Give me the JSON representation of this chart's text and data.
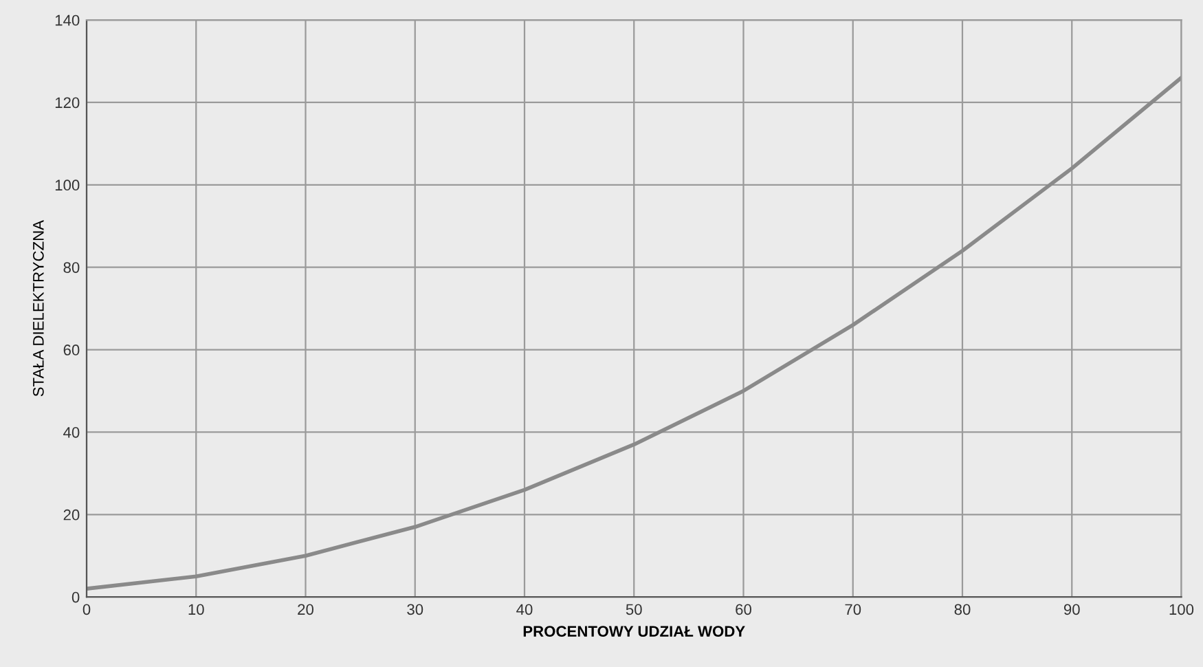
{
  "chart_data": {
    "type": "line",
    "xlabel": "PROCENTOWY UDZIAŁ WODY",
    "ylabel": "STAŁA DIELEKTRYCZNA",
    "x": [
      0,
      10,
      20,
      30,
      40,
      50,
      60,
      70,
      80,
      90,
      100
    ],
    "series": [
      {
        "color": "#8a8a8a",
        "values": [
          2,
          5,
          10,
          17,
          26,
          37,
          50,
          66,
          84,
          104,
          126
        ]
      }
    ],
    "xlim": [
      0,
      100
    ],
    "ylim": [
      0,
      140
    ],
    "xticks": [
      0,
      10,
      20,
      30,
      40,
      50,
      60,
      70,
      80,
      90,
      100
    ],
    "yticks": [
      0,
      20,
      40,
      60,
      80,
      100,
      120,
      140
    ],
    "grid": true,
    "marker": "none",
    "line_style": "solid"
  }
}
